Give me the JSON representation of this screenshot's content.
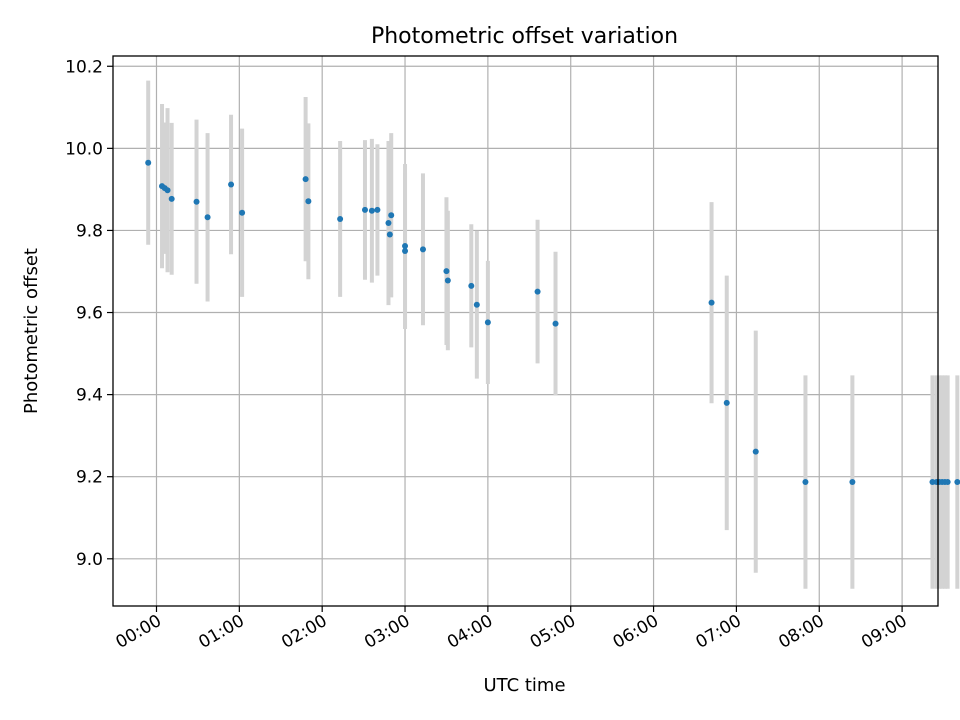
{
  "chart_data": {
    "type": "scatter",
    "title": "Photometric offset variation",
    "xlabel": "UTC time",
    "ylabel": "Photometric offset",
    "x_unit": "minutes since 00:00 UTC",
    "xlim": [
      -31.5,
      566
    ],
    "ylim": [
      8.885,
      10.225
    ],
    "grid": true,
    "x_ticks": [
      {
        "value": 0,
        "label": "00:00"
      },
      {
        "value": 60,
        "label": "01:00"
      },
      {
        "value": 120,
        "label": "02:00"
      },
      {
        "value": 180,
        "label": "03:00"
      },
      {
        "value": 240,
        "label": "04:00"
      },
      {
        "value": 300,
        "label": "05:00"
      },
      {
        "value": 360,
        "label": "06:00"
      },
      {
        "value": 420,
        "label": "07:00"
      },
      {
        "value": 480,
        "label": "08:00"
      },
      {
        "value": 540,
        "label": "09:00"
      }
    ],
    "y_ticks": [
      {
        "value": 9.0,
        "label": "9.0"
      },
      {
        "value": 9.2,
        "label": "9.2"
      },
      {
        "value": 9.4,
        "label": "9.4"
      },
      {
        "value": 9.6,
        "label": "9.6"
      },
      {
        "value": 9.8,
        "label": "9.8"
      },
      {
        "value": 10.0,
        "label": "10.0"
      },
      {
        "value": 10.2,
        "label": "10.2"
      }
    ],
    "series": [
      {
        "name": "Photometric offset",
        "color": "#1f77b4",
        "errorbar_color": "#d3d3d3",
        "points": [
          {
            "x": -6,
            "y": 9.965,
            "err": 0.2
          },
          {
            "x": 4,
            "y": 9.908,
            "err": 0.2
          },
          {
            "x": 6,
            "y": 9.903,
            "err": 0.16
          },
          {
            "x": 8,
            "y": 9.898,
            "err": 0.2
          },
          {
            "x": 11,
            "y": 9.877,
            "err": 0.185
          },
          {
            "x": 29,
            "y": 9.87,
            "err": 0.2
          },
          {
            "x": 37,
            "y": 9.832,
            "err": 0.205
          },
          {
            "x": 54,
            "y": 9.912,
            "err": 0.17
          },
          {
            "x": 62,
            "y": 9.843,
            "err": 0.205
          },
          {
            "x": 108,
            "y": 9.925,
            "err": 0.2
          },
          {
            "x": 110,
            "y": 9.871,
            "err": 0.19
          },
          {
            "x": 133,
            "y": 9.828,
            "err": 0.19
          },
          {
            "x": 151,
            "y": 9.85,
            "err": 0.17
          },
          {
            "x": 156,
            "y": 9.848,
            "err": 0.175
          },
          {
            "x": 160,
            "y": 9.85,
            "err": 0.16
          },
          {
            "x": 168,
            "y": 9.818,
            "err": 0.2
          },
          {
            "x": 169,
            "y": 9.79,
            "err": 0.15
          },
          {
            "x": 170,
            "y": 9.837,
            "err": 0.2
          },
          {
            "x": 180,
            "y": 9.762,
            "err": 0.2
          },
          {
            "x": 180,
            "y": 9.75,
            "err": 0.19
          },
          {
            "x": 193,
            "y": 9.754,
            "err": 0.185
          },
          {
            "x": 210,
            "y": 9.701,
            "err": 0.18
          },
          {
            "x": 211,
            "y": 9.678,
            "err": 0.17
          },
          {
            "x": 228,
            "y": 9.665,
            "err": 0.15
          },
          {
            "x": 232,
            "y": 9.619,
            "err": 0.18
          },
          {
            "x": 240,
            "y": 9.576,
            "err": 0.15
          },
          {
            "x": 276,
            "y": 9.651,
            "err": 0.175
          },
          {
            "x": 289,
            "y": 9.573,
            "err": 0.175
          },
          {
            "x": 402,
            "y": 9.624,
            "err": 0.245
          },
          {
            "x": 413,
            "y": 9.38,
            "err": 0.31
          },
          {
            "x": 434,
            "y": 9.261,
            "err": 0.295
          },
          {
            "x": 470,
            "y": 9.187,
            "err": 0.26
          },
          {
            "x": 504,
            "y": 9.187,
            "err": 0.26
          },
          {
            "x": 562,
            "y": 9.187,
            "err": 0.26
          },
          {
            "x": 565,
            "y": 9.187,
            "err": 0.26
          },
          {
            "x": 567,
            "y": 9.187,
            "err": 0.26
          },
          {
            "x": 569,
            "y": 9.187,
            "err": 0.26
          },
          {
            "x": 571,
            "y": 9.187,
            "err": 0.26
          },
          {
            "x": 573,
            "y": 9.187,
            "err": 0.26
          },
          {
            "x": 580,
            "y": 9.187,
            "err": 0.26
          }
        ]
      }
    ]
  }
}
